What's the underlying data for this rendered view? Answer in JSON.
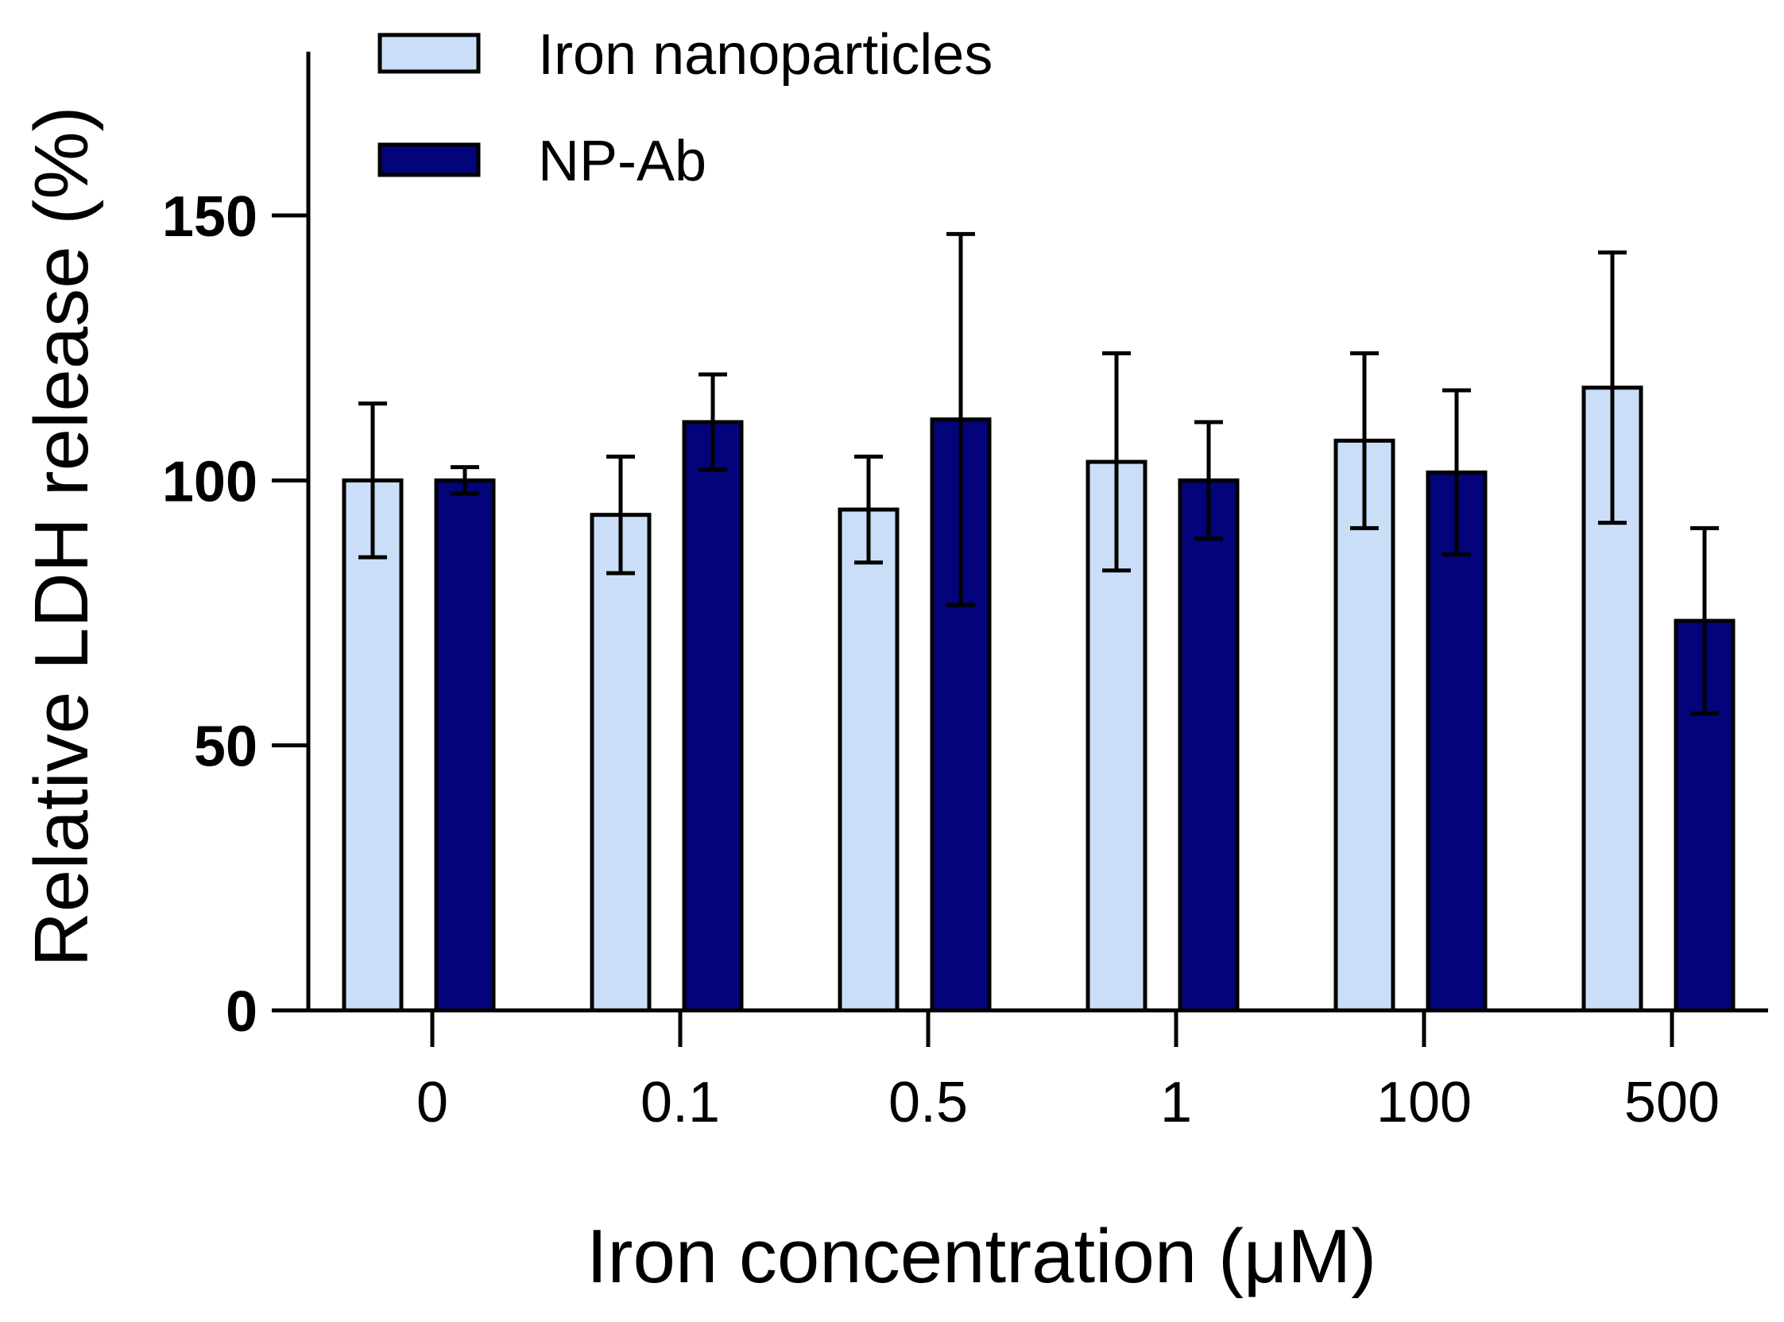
{
  "chart_data": {
    "type": "bar",
    "title": "",
    "xlabel": "Iron concentration (μM)",
    "ylabel": "Relative LDH release (%)",
    "categories": [
      "0",
      "0.1",
      "0.5",
      "1",
      "100",
      "500"
    ],
    "ylim": [
      0,
      180
    ],
    "yticks": [
      0,
      50,
      100,
      150
    ],
    "grid": false,
    "legend_position": "top-left",
    "series": [
      {
        "name": "Iron nanoparticles",
        "color": "#cadff7",
        "values": [
          100,
          93.5,
          94.5,
          103.5,
          107.5,
          117.5
        ],
        "errors": [
          14.5,
          11,
          10,
          20.5,
          16.5,
          25.5
        ]
      },
      {
        "name": "NP-Ab",
        "color": "#03037a",
        "values": [
          100,
          111,
          111.5,
          100,
          101.5,
          73.5
        ],
        "errors": [
          2.5,
          9,
          35,
          11,
          15.5,
          17.5
        ]
      }
    ]
  }
}
